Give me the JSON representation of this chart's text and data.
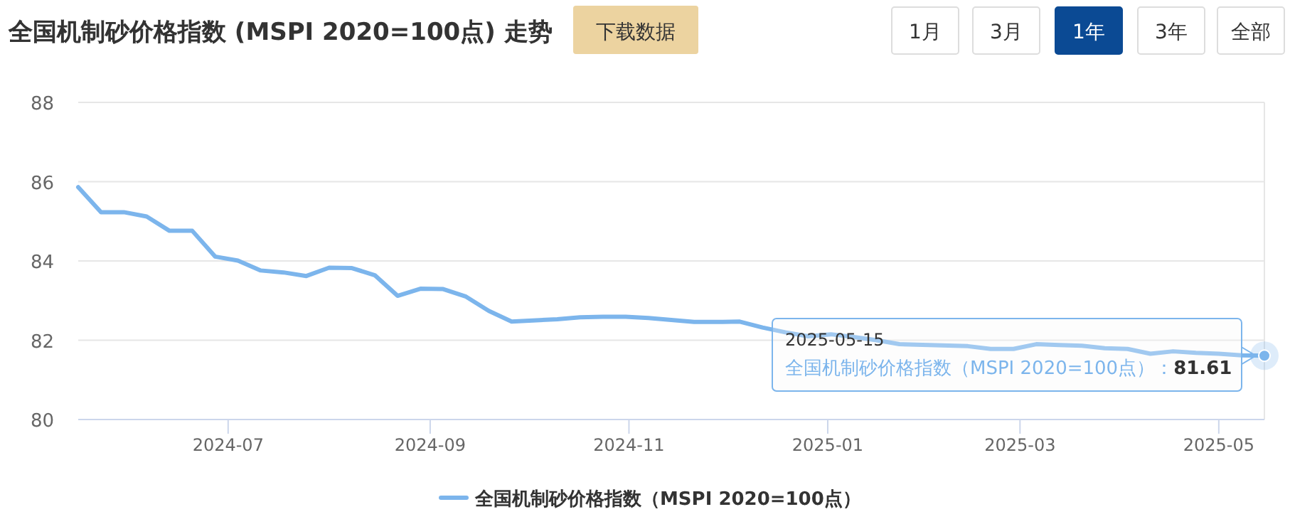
{
  "chart_data": {
    "type": "line",
    "title": "全国机制砂价格指数 (MSPI 2020=100点) 走势",
    "x": [
      "2024-05-16",
      "2024-05-23",
      "2024-05-30",
      "2024-06-06",
      "2024-06-13",
      "2024-06-20",
      "2024-06-27",
      "2024-07-04",
      "2024-07-11",
      "2024-07-18",
      "2024-07-25",
      "2024-08-01",
      "2024-08-08",
      "2024-08-15",
      "2024-08-22",
      "2024-08-29",
      "2024-09-05",
      "2024-09-12",
      "2024-09-19",
      "2024-09-26",
      "2024-10-10",
      "2024-10-17",
      "2024-10-24",
      "2024-10-31",
      "2024-11-07",
      "2024-11-14",
      "2024-11-21",
      "2024-11-28",
      "2024-12-05",
      "2024-12-12",
      "2024-12-19",
      "2024-12-26",
      "2025-01-02",
      "2025-01-09",
      "2025-01-16",
      "2025-01-23",
      "2025-02-13",
      "2025-02-20",
      "2025-02-27",
      "2025-03-06",
      "2025-03-13",
      "2025-03-20",
      "2025-03-27",
      "2025-04-03",
      "2025-04-10",
      "2025-04-17",
      "2025-04-24",
      "2025-05-01",
      "2025-05-08",
      "2025-05-15"
    ],
    "series": [
      {
        "name": "全国机制砂价格指数（MSPI 2020=100点）",
        "color": "#7cb5ec",
        "values": [
          85.86,
          85.23,
          85.23,
          85.12,
          84.76,
          84.76,
          84.11,
          84.01,
          83.76,
          83.71,
          83.62,
          83.83,
          83.82,
          83.64,
          83.12,
          83.3,
          83.29,
          83.1,
          82.74,
          82.47,
          82.53,
          82.58,
          82.59,
          82.59,
          82.56,
          82.51,
          82.46,
          82.46,
          82.47,
          82.32,
          82.2,
          82.1,
          82.15,
          82.08,
          82.0,
          81.9,
          81.85,
          81.78,
          81.78,
          81.9,
          81.88,
          81.86,
          81.8,
          81.78,
          81.66,
          81.72,
          81.68,
          81.66,
          81.62,
          81.61
        ]
      }
    ],
    "xlim": [
      "2024-05-16",
      "2025-05-15"
    ],
    "xticks": [
      {
        "value": "2024-07",
        "label": "2024-07"
      },
      {
        "value": "2024-09",
        "label": "2024-09"
      },
      {
        "value": "2024-11",
        "label": "2024-11"
      },
      {
        "value": "2025-01",
        "label": "2025-01"
      },
      {
        "value": "2025-03",
        "label": "2025-03"
      },
      {
        "value": "2025-05",
        "label": "2025-05"
      }
    ],
    "ylim": [
      80,
      88
    ],
    "yticks": [
      80,
      82,
      84,
      86,
      88
    ],
    "grid": "y",
    "legend": "bottom",
    "annotations": [
      "2025-05-15",
      {
        "text": "全国机制砂价格指数（MSPI 2020=100点）：**81.61**",
        "x": "2025-05-15",
        "y": 81.61
      },
      "下载数据",
      "1月",
      "3月",
      "1年",
      "3年",
      "全部"
    ]
  }
}
